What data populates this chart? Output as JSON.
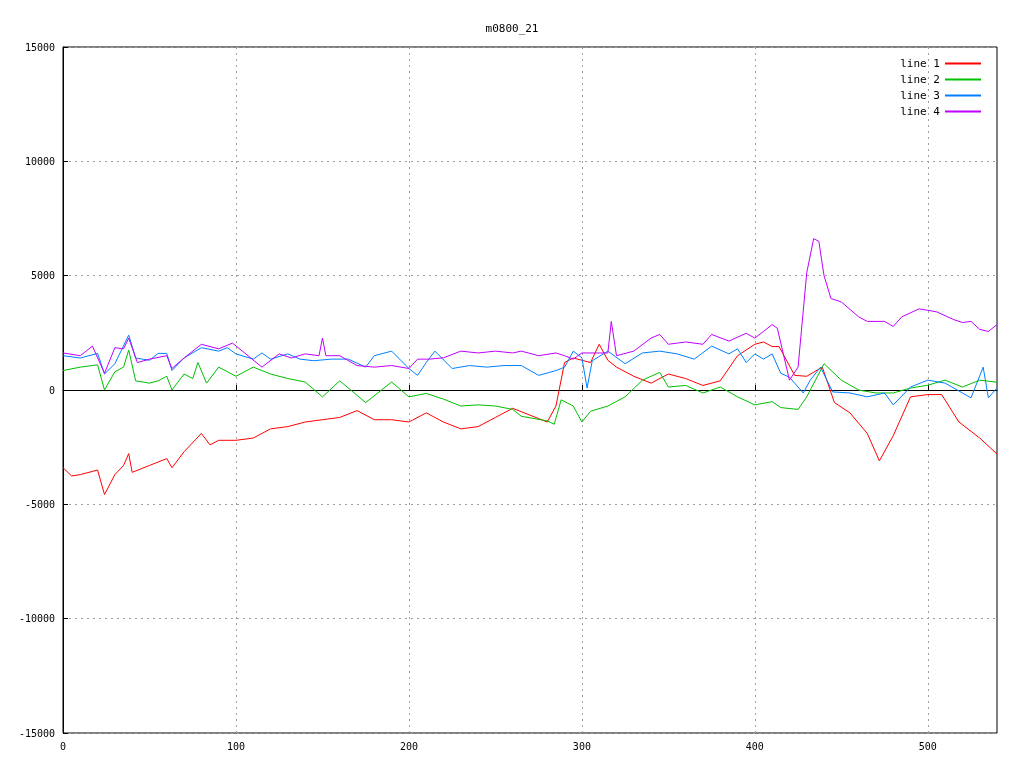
{
  "chart_data": {
    "type": "line",
    "title": "m0800_21",
    "xlim": [
      0,
      540
    ],
    "xticks": [
      0,
      100,
      200,
      300,
      400,
      500
    ],
    "ylim": [
      -15000,
      15000
    ],
    "yticks": [
      -15000,
      -10000,
      -5000,
      0,
      5000,
      10000,
      15000
    ],
    "grid": true,
    "legend": "top right",
    "line_style": "solid",
    "marker": "none",
    "series": [
      {
        "name": "line 1",
        "color": "#ff0000",
        "x": [
          0,
          5,
          10,
          20,
          24,
          30,
          35,
          38,
          40,
          50,
          60,
          63,
          70,
          80,
          85,
          90,
          100,
          110,
          120,
          130,
          140,
          150,
          160,
          170,
          180,
          190,
          200,
          210,
          220,
          230,
          240,
          250,
          260,
          270,
          280,
          285,
          290,
          295,
          300,
          305,
          310,
          315,
          320,
          330,
          340,
          350,
          360,
          370,
          380,
          390,
          400,
          405,
          410,
          414,
          423,
          430,
          439,
          446,
          455,
          465,
          472,
          480,
          490,
          500,
          508,
          518,
          530,
          540
        ],
        "values": [
          -3400,
          -3760,
          -3700,
          -3500,
          -4570,
          -3700,
          -3300,
          -2780,
          -3600,
          -3300,
          -3000,
          -3400,
          -2700,
          -1900,
          -2400,
          -2200,
          -2200,
          -2100,
          -1700,
          -1600,
          -1400,
          -1300,
          -1200,
          -900,
          -1300,
          -1300,
          -1400,
          -1000,
          -1400,
          -1700,
          -1600,
          -1200,
          -800,
          -1100,
          -1400,
          -700,
          1200,
          1400,
          1300,
          1200,
          2000,
          1300,
          1000,
          600,
          300,
          700,
          500,
          200,
          400,
          1500,
          2000,
          2100,
          1900,
          1900,
          640,
          600,
          1000,
          -550,
          -1000,
          -1900,
          -3100,
          -2000,
          -300,
          -200,
          -200,
          -1400,
          -2100,
          -2800
        ]
      },
      {
        "name": "line 2",
        "color": "#00c000",
        "x": [
          0,
          10,
          20,
          24,
          30,
          35,
          38,
          42,
          50,
          55,
          60,
          63,
          70,
          75,
          78,
          83,
          90,
          100,
          110,
          120,
          130,
          140,
          150,
          160,
          175,
          190,
          200,
          210,
          220,
          230,
          240,
          250,
          260,
          265,
          280,
          284,
          288,
          295,
          300,
          305,
          315,
          325,
          335,
          345,
          350,
          360,
          370,
          380,
          390,
          400,
          410,
          415,
          425,
          430,
          440,
          450,
          460,
          470,
          480,
          490,
          500,
          510,
          520,
          530,
          540
        ],
        "values": [
          850,
          1000,
          1100,
          0,
          800,
          1000,
          1750,
          400,
          300,
          400,
          600,
          0,
          700,
          500,
          1200,
          300,
          1000,
          600,
          1000,
          700,
          500,
          350,
          -300,
          400,
          -550,
          350,
          -300,
          -150,
          -400,
          -700,
          -650,
          -700,
          -850,
          -1150,
          -1350,
          -1500,
          -430,
          -700,
          -1400,
          -930,
          -700,
          -300,
          430,
          770,
          130,
          200,
          -130,
          130,
          -300,
          -650,
          -510,
          -770,
          -850,
          -300,
          1150,
          430,
          0,
          -130,
          -130,
          85,
          210,
          430,
          130,
          430,
          340
        ]
      },
      {
        "name": "line 3",
        "color": "#0080ff",
        "x": [
          0,
          10,
          20,
          24,
          30,
          38,
          42,
          50,
          55,
          60,
          63,
          70,
          80,
          90,
          95,
          100,
          110,
          115,
          120,
          130,
          137,
          145,
          155,
          165,
          175,
          180,
          190,
          200,
          205,
          210,
          215,
          225,
          235,
          245,
          255,
          265,
          275,
          285,
          290,
          295,
          300,
          303,
          306,
          315,
          325,
          335,
          345,
          355,
          365,
          375,
          385,
          390,
          395,
          400,
          405,
          410,
          415,
          420,
          428,
          432,
          438,
          445,
          455,
          465,
          475,
          480,
          490,
          500,
          510,
          520,
          525,
          532,
          535,
          540
        ],
        "values": [
          1500,
          1400,
          1600,
          700,
          1150,
          2400,
          1400,
          1300,
          1600,
          1600,
          850,
          1400,
          1850,
          1700,
          1850,
          1580,
          1350,
          1620,
          1350,
          1580,
          1350,
          1280,
          1350,
          1350,
          1000,
          1500,
          1700,
          940,
          640,
          1200,
          1700,
          940,
          1070,
          1000,
          1070,
          1070,
          640,
          850,
          1000,
          1700,
          1410,
          85,
          1280,
          1700,
          1150,
          1620,
          1700,
          1580,
          1350,
          1920,
          1580,
          1800,
          1200,
          1580,
          1350,
          1580,
          730,
          560,
          -130,
          430,
          1000,
          -85,
          -130,
          -300,
          -130,
          -650,
          130,
          430,
          300,
          -130,
          -340,
          1000,
          -340,
          85
        ]
      },
      {
        "name": "line 4",
        "color": "#c000ff",
        "x": [
          0,
          10,
          17,
          24,
          30,
          35,
          38,
          43,
          50,
          60,
          63,
          70,
          80,
          90,
          98,
          105,
          115,
          125,
          132,
          140,
          148,
          150,
          152,
          160,
          170,
          180,
          190,
          200,
          205,
          212,
          220,
          230,
          240,
          250,
          260,
          265,
          275,
          285,
          290,
          295,
          300,
          310,
          315,
          317,
          320,
          330,
          340,
          345,
          350,
          360,
          370,
          375,
          385,
          395,
          400,
          405,
          410,
          413,
          420,
          425,
          430,
          434,
          437,
          440,
          444,
          450,
          460,
          465,
          475,
          480,
          485,
          495,
          505,
          515,
          520,
          525,
          530,
          535,
          540
        ],
        "values": [
          1620,
          1500,
          1920,
          730,
          1850,
          1800,
          2270,
          1200,
          1350,
          1500,
          940,
          1400,
          2000,
          1800,
          2050,
          1620,
          1000,
          1580,
          1400,
          1580,
          1500,
          2270,
          1500,
          1500,
          1070,
          1000,
          1070,
          940,
          1350,
          1350,
          1410,
          1700,
          1620,
          1700,
          1620,
          1700,
          1500,
          1620,
          1500,
          1350,
          1620,
          1620,
          1620,
          3000,
          1500,
          1700,
          2270,
          2430,
          2000,
          2100,
          2000,
          2430,
          2140,
          2480,
          2270,
          2560,
          2860,
          2700,
          430,
          1000,
          5130,
          6620,
          6500,
          5000,
          4000,
          3850,
          3200,
          3000,
          3000,
          2780,
          3200,
          3550,
          3420,
          3080,
          2950,
          3000,
          2650,
          2560,
          2860
        ]
      }
    ]
  }
}
